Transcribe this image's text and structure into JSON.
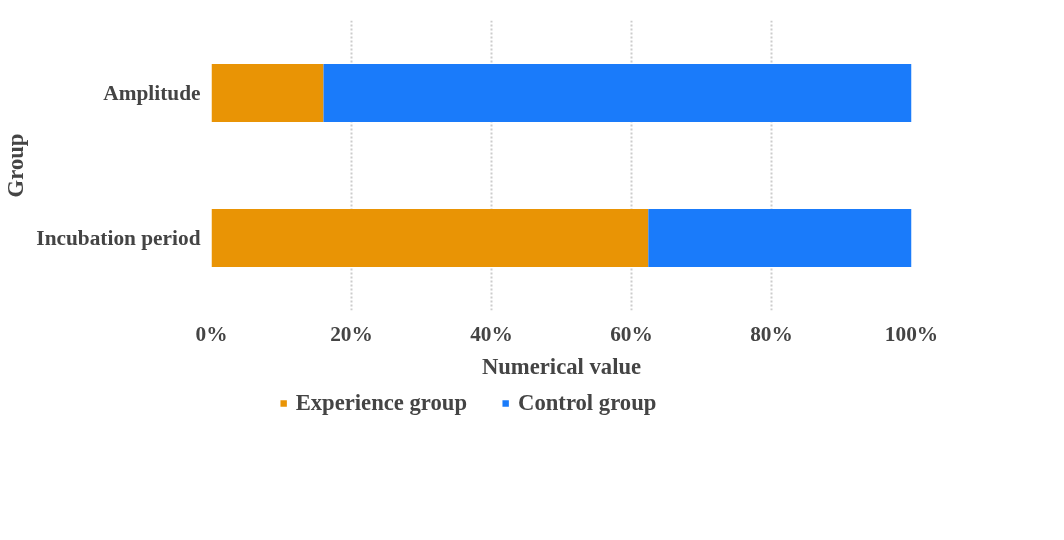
{
  "chart_data": {
    "type": "bar",
    "orientation": "horizontal",
    "stacked": true,
    "xlabel": "Numerical value",
    "ylabel": "Group",
    "categories": [
      "Amplitude",
      "Incubation period"
    ],
    "series": [
      {
        "name": "Experience group",
        "color": "#e99405",
        "values": [
          16,
          62.4
        ]
      },
      {
        "name": "Control group",
        "color": "#1a7bfa",
        "values": [
          84,
          37.6
        ]
      }
    ],
    "xlim": [
      0,
      100
    ],
    "xticks": [
      {
        "value": 0,
        "label": "0%"
      },
      {
        "value": 20,
        "label": "20%"
      },
      {
        "value": 40,
        "label": "40%"
      },
      {
        "value": 60,
        "label": "60%"
      },
      {
        "value": 80,
        "label": "80%"
      },
      {
        "value": 100,
        "label": "100%"
      }
    ],
    "grid": "x",
    "legend": "bottom"
  }
}
